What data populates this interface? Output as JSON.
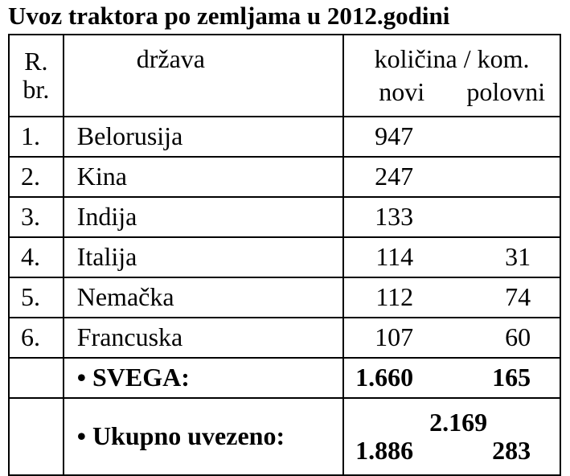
{
  "title": "Uvoz traktora po zemljama u 2012.godini",
  "header": {
    "rb": [
      "R.",
      "br."
    ],
    "country": "država",
    "quantity": "količina / kom.",
    "new": "novi",
    "used": "polovni"
  },
  "rows": [
    {
      "rb": "1.",
      "country": "Belorusija",
      "new": "947"
    },
    {
      "rb": "2.",
      "country": "Kina",
      "new": "247"
    },
    {
      "rb": "3.",
      "country": "Indija",
      "new": "133"
    },
    {
      "rb": "4.",
      "country": "Italija",
      "new": "114",
      "used": "31"
    },
    {
      "rb": "5.",
      "country": "Nemačka",
      "new": "112",
      "used": "74"
    },
    {
      "rb": "6.",
      "country": "Francuska",
      "new": "107",
      "used": "60"
    }
  ],
  "subtotal": {
    "label": "• SVEGA:",
    "new": "1.660",
    "used": "165"
  },
  "total": {
    "label": "• Ukupno uvezeno:",
    "sum": "2.169",
    "new": "1.886",
    "used": "283"
  }
}
